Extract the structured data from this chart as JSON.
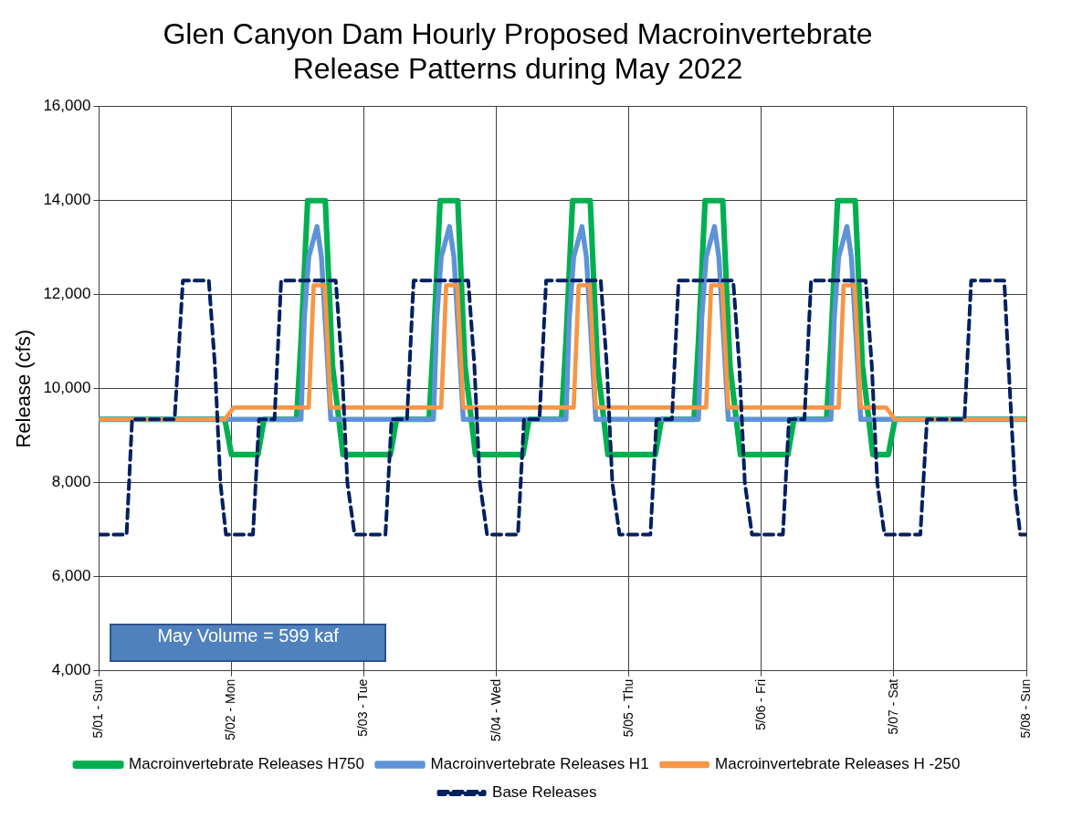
{
  "chart_data": {
    "type": "line",
    "title": "Glen Canyon Dam Hourly Proposed Macroinvertebrate Release Patterns during May 2022",
    "ylabel": "Release (cfs)",
    "xlim": [
      "2022-05-01T00:00",
      "2022-05-08T00:00"
    ],
    "xticks": [
      {
        "value": "2022-05-01T00:00",
        "label": "5/01 - Sun"
      },
      {
        "value": "2022-05-02T00:00",
        "label": "5/02 - Mon"
      },
      {
        "value": "2022-05-03T00:00",
        "label": "5/03 - Tue"
      },
      {
        "value": "2022-05-04T00:00",
        "label": "5/04 - Wed"
      },
      {
        "value": "2022-05-05T00:00",
        "label": "5/05 - Thu"
      },
      {
        "value": "2022-05-06T00:00",
        "label": "5/06 - Fri"
      },
      {
        "value": "2022-05-07T00:00",
        "label": "5/07 - Sat"
      },
      {
        "value": "2022-05-08T00:00",
        "label": "5/08 - Sun"
      }
    ],
    "ylim": [
      4000,
      16000
    ],
    "yticks": [
      {
        "value": 4000,
        "label": "4,000"
      },
      {
        "value": 6000,
        "label": "6,000"
      },
      {
        "value": 8000,
        "label": "8,000"
      },
      {
        "value": 10000,
        "label": "10,000"
      },
      {
        "value": 12000,
        "label": "12,000"
      },
      {
        "value": 14000,
        "label": "14,000"
      },
      {
        "value": 16000,
        "label": "16,000"
      }
    ],
    "grid": true,
    "legend": "bottom",
    "marker": "none",
    "line_style": "solid",
    "annotations": [
      "May Volume = 599 kaf"
    ],
    "series": [
      {
        "name": "Macroinvertebrate Releases H750",
        "color": "#00b050",
        "x": [
          "2022-05-01T00:00",
          "2022-05-01T22:48",
          "2022-05-02T00:00",
          "2022-05-02T04:48",
          "2022-05-02T05:54",
          "2022-05-02T11:48",
          "2022-05-02T12:36",
          "2022-05-02T13:48",
          "2022-05-02T17:00",
          "2022-05-02T18:18",
          "2022-05-02T20:12",
          "2022-05-03T04:48",
          "2022-05-03T05:54",
          "2022-05-03T11:48",
          "2022-05-03T12:36",
          "2022-05-03T13:48",
          "2022-05-03T17:00",
          "2022-05-03T18:18",
          "2022-05-03T20:12",
          "2022-05-04T04:48",
          "2022-05-04T05:54",
          "2022-05-04T11:48",
          "2022-05-04T12:36",
          "2022-05-04T13:48",
          "2022-05-04T17:00",
          "2022-05-04T18:18",
          "2022-05-04T20:12",
          "2022-05-05T04:48",
          "2022-05-05T05:54",
          "2022-05-05T11:48",
          "2022-05-05T12:36",
          "2022-05-05T13:48",
          "2022-05-05T17:00",
          "2022-05-05T18:18",
          "2022-05-05T20:12",
          "2022-05-06T04:48",
          "2022-05-06T05:54",
          "2022-05-06T11:48",
          "2022-05-06T12:36",
          "2022-05-06T13:48",
          "2022-05-06T17:00",
          "2022-05-06T18:18",
          "2022-05-06T20:12",
          "2022-05-06T23:00",
          "2022-05-07T00:12",
          "2022-05-08T00:00"
        ],
        "values": [
          9350,
          9350,
          8600,
          8600,
          9350,
          9350,
          11000,
          14000,
          14000,
          10500,
          8600,
          8600,
          9350,
          9350,
          11000,
          14000,
          14000,
          10500,
          8600,
          8600,
          9350,
          9350,
          11000,
          14000,
          14000,
          10500,
          8600,
          8600,
          9350,
          9350,
          11000,
          14000,
          14000,
          10500,
          8600,
          8600,
          9350,
          9350,
          11000,
          14000,
          14000,
          10500,
          8600,
          8600,
          9350,
          9350
        ]
      },
      {
        "name": "Macroinvertebrate Releases H1",
        "color": "#5f93d8",
        "x": [
          "2022-05-01T00:00",
          "2022-05-02T12:36",
          "2022-05-02T13:12",
          "2022-05-02T14:00",
          "2022-05-02T15:30",
          "2022-05-02T16:18",
          "2022-05-02T17:12",
          "2022-05-02T18:00",
          "2022-05-03T12:36",
          "2022-05-03T13:12",
          "2022-05-03T14:00",
          "2022-05-03T15:30",
          "2022-05-03T16:18",
          "2022-05-03T17:12",
          "2022-05-03T18:00",
          "2022-05-04T12:36",
          "2022-05-04T13:12",
          "2022-05-04T14:00",
          "2022-05-04T15:30",
          "2022-05-04T16:18",
          "2022-05-04T17:12",
          "2022-05-04T18:00",
          "2022-05-05T12:36",
          "2022-05-05T13:12",
          "2022-05-05T14:00",
          "2022-05-05T15:30",
          "2022-05-05T16:18",
          "2022-05-05T17:12",
          "2022-05-05T18:00",
          "2022-05-06T12:36",
          "2022-05-06T13:12",
          "2022-05-06T14:00",
          "2022-05-06T15:30",
          "2022-05-06T16:18",
          "2022-05-06T17:12",
          "2022-05-06T18:00",
          "2022-05-08T00:00"
        ],
        "values": [
          9350,
          9350,
          11500,
          12800,
          13450,
          12800,
          11000,
          9350,
          9350,
          11500,
          12800,
          13450,
          12800,
          11000,
          9350,
          9350,
          11500,
          12800,
          13450,
          12800,
          11000,
          9350,
          9350,
          11500,
          12800,
          13450,
          12800,
          11000,
          9350,
          9350,
          11500,
          12800,
          13450,
          12800,
          11000,
          9350,
          9350
        ]
      },
      {
        "name": "Macroinvertebrate Releases H -250",
        "color": "#f79646",
        "x": [
          "2022-05-01T00:00",
          "2022-05-01T22:48",
          "2022-05-02T00:24",
          "2022-05-02T14:00",
          "2022-05-02T14:54",
          "2022-05-02T16:54",
          "2022-05-02T18:00",
          "2022-05-03T14:00",
          "2022-05-03T14:54",
          "2022-05-03T16:54",
          "2022-05-03T18:00",
          "2022-05-04T14:00",
          "2022-05-04T14:54",
          "2022-05-04T16:54",
          "2022-05-04T18:00",
          "2022-05-05T14:00",
          "2022-05-05T14:54",
          "2022-05-05T16:54",
          "2022-05-05T18:00",
          "2022-05-06T14:00",
          "2022-05-06T14:54",
          "2022-05-06T16:54",
          "2022-05-06T18:00",
          "2022-05-06T22:36",
          "2022-05-07T00:12",
          "2022-05-08T00:00"
        ],
        "values": [
          9350,
          9350,
          9600,
          9600,
          12200,
          12200,
          9600,
          9600,
          12200,
          12200,
          9600,
          9600,
          12200,
          12200,
          9600,
          9600,
          12200,
          12200,
          9600,
          9600,
          12200,
          12200,
          9600,
          9600,
          9350,
          9350
        ]
      },
      {
        "name": "Base Releases",
        "color": "#002060",
        "line_style": "dashed",
        "x": [
          "2022-05-01T00:00",
          "2022-05-01T05:00",
          "2022-05-01T06:00",
          "2022-05-01T13:42",
          "2022-05-01T15:12",
          "2022-05-01T19:54",
          "2022-05-01T21:00",
          "2022-05-01T22:00",
          "2022-05-01T23:00",
          "2022-05-02T03:54",
          "2022-05-02T05:00",
          "2022-05-02T07:48",
          "2022-05-02T09:00",
          "2022-05-02T18:54",
          "2022-05-02T20:00",
          "2022-05-02T21:00",
          "2022-05-02T22:18",
          "2022-05-03T03:54",
          "2022-05-03T05:00",
          "2022-05-03T07:48",
          "2022-05-03T09:00",
          "2022-05-03T18:54",
          "2022-05-03T20:00",
          "2022-05-03T21:00",
          "2022-05-03T22:18",
          "2022-05-04T03:54",
          "2022-05-04T05:00",
          "2022-05-04T07:48",
          "2022-05-04T09:00",
          "2022-05-04T18:54",
          "2022-05-04T20:00",
          "2022-05-04T21:00",
          "2022-05-04T22:18",
          "2022-05-05T03:54",
          "2022-05-05T05:00",
          "2022-05-05T07:48",
          "2022-05-05T09:00",
          "2022-05-05T18:54",
          "2022-05-05T20:00",
          "2022-05-05T21:00",
          "2022-05-05T22:18",
          "2022-05-06T03:54",
          "2022-05-06T05:00",
          "2022-05-06T07:48",
          "2022-05-06T09:00",
          "2022-05-06T18:54",
          "2022-05-06T20:00",
          "2022-05-06T21:00",
          "2022-05-06T22:18",
          "2022-05-07T04:48",
          "2022-05-07T06:00",
          "2022-05-07T12:48",
          "2022-05-07T14:00",
          "2022-05-07T20:00",
          "2022-05-07T21:00",
          "2022-05-07T22:00",
          "2022-05-07T22:54",
          "2022-05-08T00:00"
        ],
        "values": [
          6900,
          6900,
          9350,
          9350,
          12300,
          12300,
          10500,
          8000,
          6900,
          6900,
          9350,
          9350,
          12300,
          12300,
          10500,
          8000,
          6900,
          6900,
          9350,
          9350,
          12300,
          12300,
          10500,
          8000,
          6900,
          6900,
          9350,
          9350,
          12300,
          12300,
          10500,
          8000,
          6900,
          6900,
          9350,
          9350,
          12300,
          12300,
          10500,
          8000,
          6900,
          6900,
          9350,
          9350,
          12300,
          12300,
          10500,
          8000,
          6900,
          6900,
          9350,
          9350,
          12300,
          12300,
          10000,
          7800,
          6900,
          6900
        ]
      }
    ]
  }
}
